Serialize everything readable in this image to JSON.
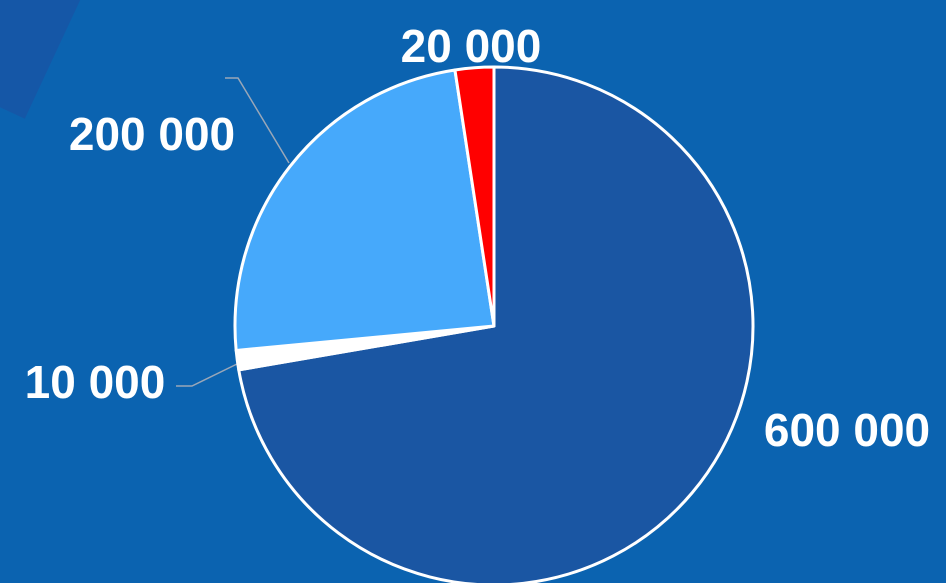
{
  "chart_data": {
    "type": "pie",
    "title": "",
    "start_angle_deg": 0,
    "direction": "clockwise",
    "slices": [
      {
        "label": "600 000",
        "value": 600000,
        "color": "#1a56a3"
      },
      {
        "label": "10 000",
        "value": 10000,
        "color": "#ffffff"
      },
      {
        "label": "200 000",
        "value": 200000,
        "color": "#46a9fb"
      },
      {
        "label": "20 000",
        "value": 20000,
        "color": "#ff0000"
      }
    ],
    "slice_border_color": "#ffffff",
    "leader_line_color": "#9aa7b8",
    "label_color": "#ffffff",
    "background_color": "#0b63b0",
    "legend": "none"
  }
}
